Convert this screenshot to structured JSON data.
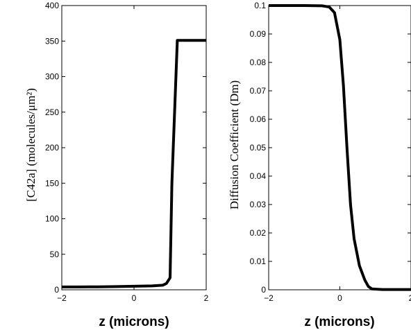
{
  "chart_data": [
    {
      "type": "line",
      "xlabel": "z (microns)",
      "ylabel": "[C42a] (molecules/μm²)",
      "xlim": [
        -2,
        2
      ],
      "ylim": [
        0,
        400
      ],
      "xticks": [
        "-2",
        "0",
        "2"
      ],
      "yticks": [
        "0",
        "50",
        "100",
        "150",
        "200",
        "250",
        "300",
        "350",
        "400"
      ],
      "grid": false,
      "series": [
        {
          "color": "#000000",
          "x": [
            -2,
            -1.5,
            -1,
            -0.5,
            0,
            0.5,
            0.8,
            0.9,
            1.0,
            1.05,
            1.2,
            1.5,
            2
          ],
          "y": [
            4,
            4,
            4.2,
            4.5,
            5,
            5.5,
            6.5,
            9,
            17,
            150,
            351,
            351,
            351
          ]
        }
      ]
    },
    {
      "type": "line",
      "xlabel": "z (microns)",
      "ylabel": "Diffusion Coefficient (Dm)",
      "xlim": [
        -2,
        2
      ],
      "ylim": [
        0,
        0.1
      ],
      "xticks": [
        "-2",
        "0",
        "2"
      ],
      "yticks": [
        "0",
        "0.01",
        "0.02",
        "0.03",
        "0.04",
        "0.05",
        "0.06",
        "0.07",
        "0.08",
        "0.09",
        "0.1"
      ],
      "grid": false,
      "series": [
        {
          "color": "#000000",
          "x": [
            -2,
            -1.5,
            -1,
            -0.5,
            -0.3,
            -0.15,
            0,
            0.1,
            0.2,
            0.3,
            0.4,
            0.55,
            0.7,
            0.8,
            0.9,
            1.2,
            1.6,
            2
          ],
          "y": [
            0.1,
            0.1,
            0.1,
            0.0999,
            0.0995,
            0.0975,
            0.088,
            0.072,
            0.05,
            0.03,
            0.018,
            0.0085,
            0.0035,
            0.0012,
            0.0003,
            0.0001,
            0.0001,
            0.0001
          ]
        }
      ]
    }
  ]
}
